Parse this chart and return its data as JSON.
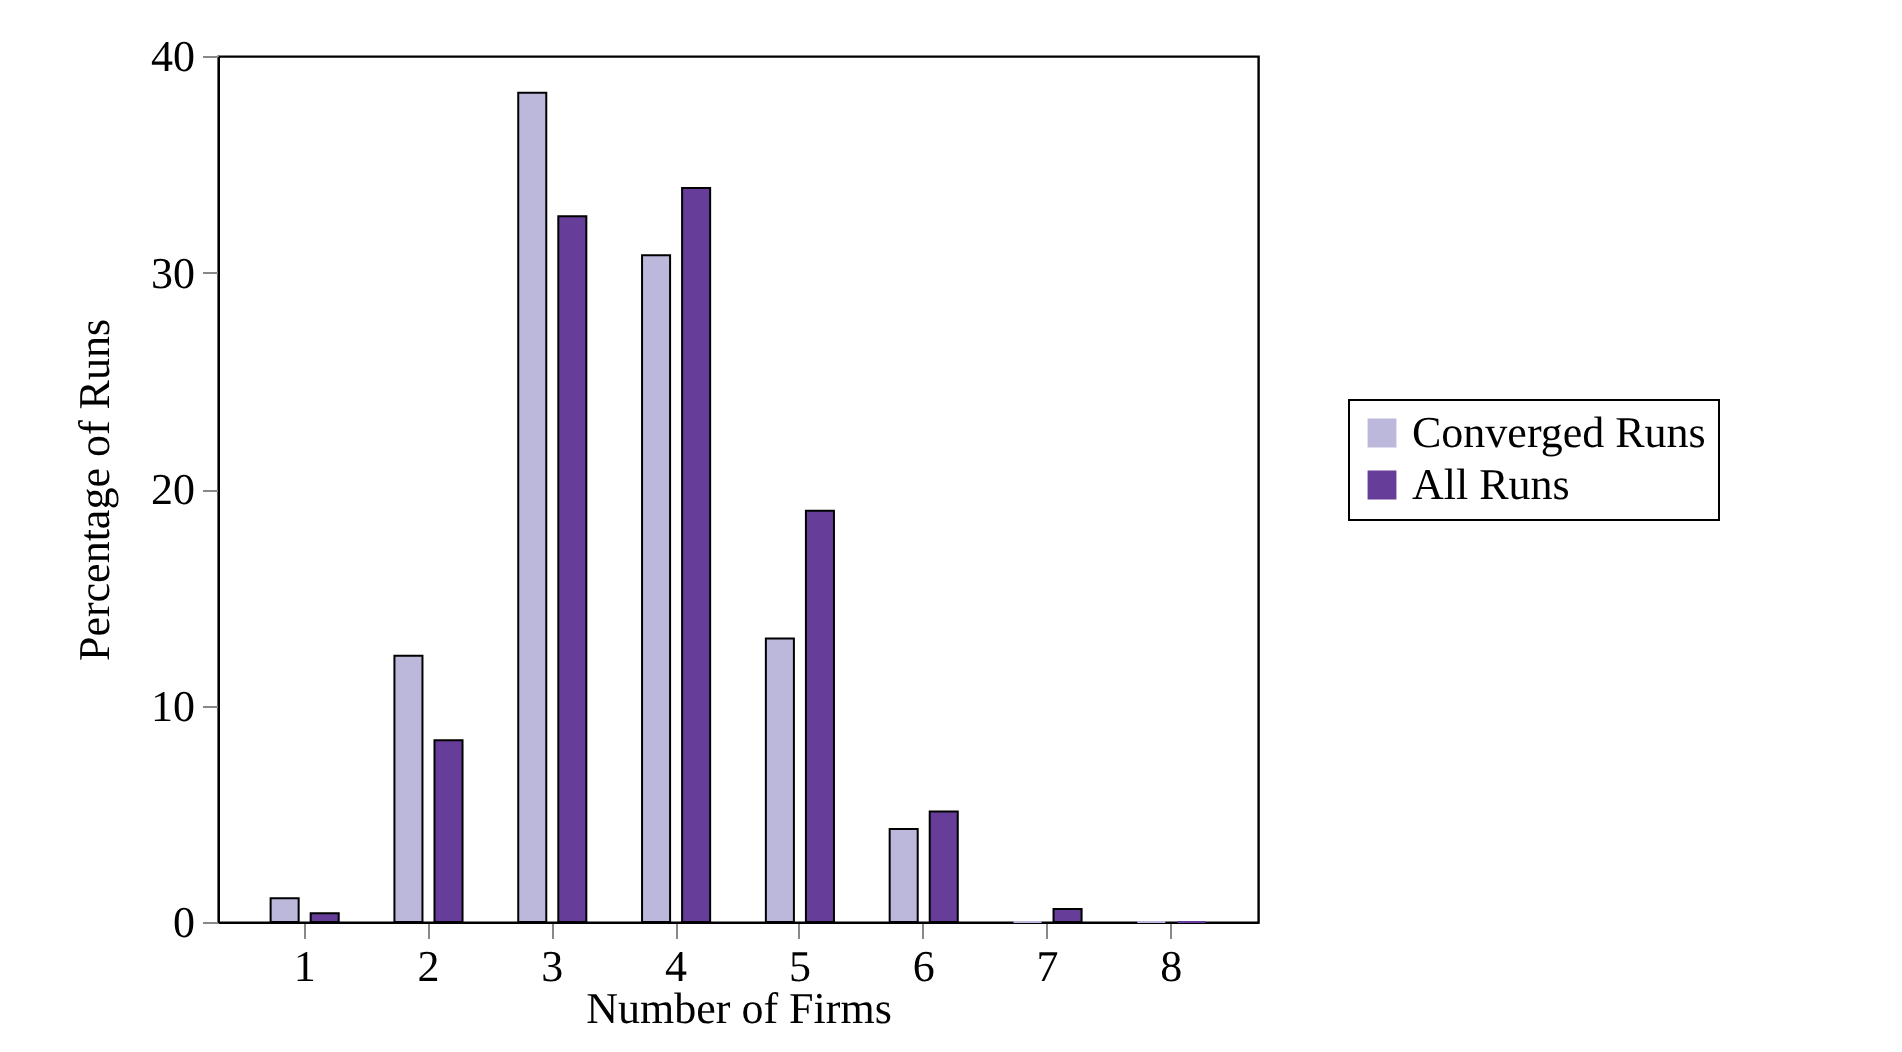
{
  "chart_data": {
    "type": "bar",
    "xlabel": "Number of Firms",
    "ylabel": "Percentage of Runs",
    "categories": [
      "1",
      "2",
      "3",
      "4",
      "5",
      "6",
      "7",
      "8"
    ],
    "series": [
      {
        "name": "Converged Runs",
        "color": "#bbb8dc",
        "values": [
          1.1,
          12.3,
          38.3,
          30.8,
          13.1,
          4.3,
          0,
          0
        ]
      },
      {
        "name": "All Runs",
        "color": "#663d99",
        "values": [
          0.4,
          8.4,
          32.6,
          33.9,
          19.0,
          5.1,
          0.6,
          0
        ]
      }
    ],
    "ylim": [
      0,
      40
    ],
    "yticks": [
      0,
      10,
      20,
      30,
      40
    ],
    "legend": "right",
    "grid": false
  }
}
